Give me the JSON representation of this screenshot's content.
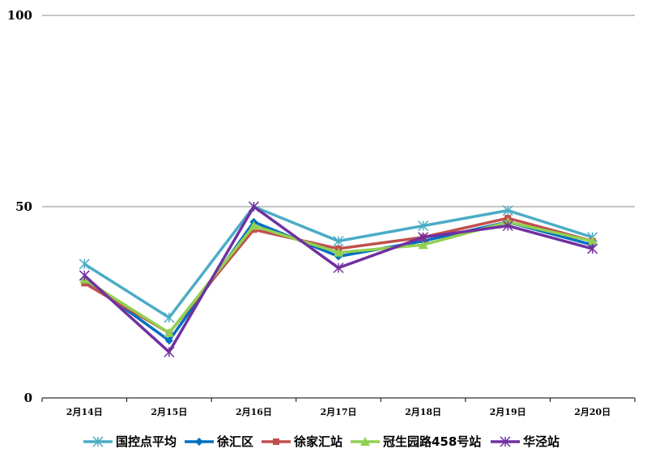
{
  "chart_data": {
    "type": "line",
    "categories": [
      "2月14日",
      "2月15日",
      "2月16日",
      "2月17日",
      "2月18日",
      "2月19日",
      "2月20日"
    ],
    "ylim": [
      0,
      100
    ],
    "yticks": [
      "0",
      "50",
      "100"
    ],
    "grid": true,
    "legend_position": "bottom",
    "series": [
      {
        "name": "国控点平均",
        "color": "#4BACC6",
        "marker": "star",
        "values": [
          35,
          21,
          50,
          41,
          45,
          49,
          42
        ]
      },
      {
        "name": "徐汇区",
        "color": "#0070C0",
        "marker": "diamond",
        "values": [
          31,
          15,
          46,
          37,
          41,
          46,
          40
        ]
      },
      {
        "name": "徐家汇站",
        "color": "#C0504D",
        "marker": "square",
        "values": [
          30,
          17,
          44,
          39,
          42,
          47,
          41
        ]
      },
      {
        "name": "冠生园路458号站",
        "color": "#92D050",
        "marker": "triangle",
        "values": [
          31,
          17,
          45,
          38,
          40,
          46,
          41
        ]
      },
      {
        "name": "华泾站",
        "color": "#7030A0",
        "marker": "star",
        "values": [
          32,
          12,
          50,
          34,
          42,
          45,
          39
        ]
      }
    ]
  }
}
